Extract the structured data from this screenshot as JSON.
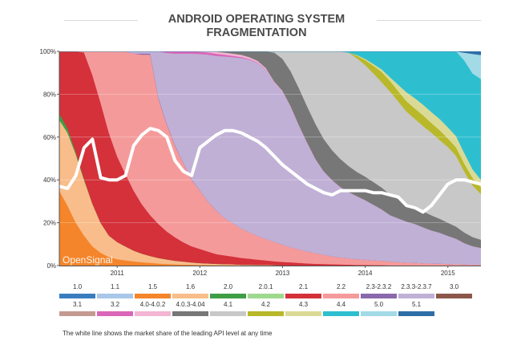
{
  "header": {
    "title_line1": "ANDROID OPERATING SYSTEM",
    "title_line2": "FRAGMENTATION"
  },
  "footnote": "The white line shows the market share of the leading API level at any time",
  "chart_data": {
    "type": "area",
    "stacked": true,
    "normalized": true,
    "title": "ANDROID OPERATING SYSTEM FRAGMENTATION",
    "xlabel": "",
    "ylabel": "",
    "x": [
      2010.3,
      2010.4,
      2010.5,
      2010.6,
      2010.7,
      2010.8,
      2010.9,
      2011.0,
      2011.1,
      2011.2,
      2011.3,
      2011.4,
      2011.5,
      2011.6,
      2011.7,
      2011.8,
      2011.9,
      2012.0,
      2012.1,
      2012.2,
      2012.3,
      2012.4,
      2012.5,
      2012.6,
      2012.7,
      2012.8,
      2012.9,
      2013.0,
      2013.1,
      2013.2,
      2013.3,
      2013.4,
      2013.5,
      2013.6,
      2013.7,
      2013.8,
      2013.9,
      2014.0,
      2014.1,
      2014.2,
      2014.3,
      2014.4,
      2014.5,
      2014.6,
      2014.7,
      2014.8,
      2014.9,
      2015.0,
      2015.1,
      2015.2,
      2015.3,
      2015.4
    ],
    "x_ticks": [
      "2011",
      "2012",
      "2013",
      "2014",
      "2015"
    ],
    "x_tick_values": [
      2011,
      2012,
      2013,
      2014,
      2015
    ],
    "y_ticks": [
      "0%",
      "20%",
      "40%",
      "60%",
      "80%",
      "100%"
    ],
    "ylim": [
      0,
      100
    ],
    "grid": "horizontal",
    "watermark": "OpenSignal",
    "series": [
      {
        "name": "1.0",
        "values": [
          0,
          0,
          0,
          0,
          0,
          0,
          0,
          0,
          0,
          0,
          0,
          0,
          0,
          0,
          0,
          0,
          0,
          0,
          0,
          0,
          0,
          0,
          0,
          0,
          0,
          0,
          0,
          0,
          0,
          0,
          0,
          0,
          0,
          0,
          0,
          0,
          0,
          0,
          0,
          0,
          0,
          0,
          0,
          0,
          0,
          0,
          0,
          0,
          0,
          0,
          0,
          0
        ]
      },
      {
        "name": "1.1",
        "values": [
          0,
          0,
          0,
          0,
          0,
          0,
          0,
          0,
          0,
          0,
          0,
          0,
          0,
          0,
          0,
          0,
          0,
          0,
          0,
          0,
          0,
          0,
          0,
          0,
          0,
          0,
          0,
          0,
          0,
          0,
          0,
          0,
          0,
          0,
          0,
          0,
          0,
          0,
          0,
          0,
          0,
          0,
          0,
          0,
          0,
          0,
          0,
          0,
          0,
          0,
          0,
          0
        ]
      },
      {
        "name": "1.5",
        "values": [
          35,
          28,
          20,
          14,
          9,
          6,
          4,
          3,
          2.5,
          2,
          1.6,
          1.3,
          1,
          0.8,
          0.6,
          0.5,
          0.4,
          0.3,
          0.3,
          0.2,
          0.2,
          0.2,
          0.1,
          0.1,
          0.1,
          0.1,
          0,
          0,
          0,
          0,
          0,
          0,
          0,
          0,
          0,
          0,
          0,
          0,
          0,
          0,
          0,
          0,
          0,
          0,
          0,
          0,
          0,
          0,
          0,
          0,
          0,
          0
        ]
      },
      {
        "name": "1.6",
        "values": [
          33,
          34,
          32,
          26,
          20,
          14,
          10,
          8,
          6.5,
          5,
          4,
          3.2,
          2.6,
          2.1,
          1.7,
          1.4,
          1.1,
          0.9,
          0.7,
          0.6,
          0.5,
          0.4,
          0.3,
          0.3,
          0.2,
          0.2,
          0.2,
          0.1,
          0.1,
          0.1,
          0,
          0,
          0,
          0,
          0,
          0,
          0,
          0,
          0,
          0,
          0,
          0,
          0,
          0,
          0,
          0,
          0,
          0,
          0,
          0,
          0,
          0
        ]
      },
      {
        "name": "2.0",
        "values": [
          3,
          2,
          1,
          0.5,
          0,
          0,
          0,
          0,
          0,
          0,
          0,
          0,
          0,
          0,
          0,
          0,
          0,
          0,
          0,
          0,
          0,
          0,
          0,
          0,
          0,
          0,
          0,
          0,
          0,
          0,
          0,
          0,
          0,
          0,
          0,
          0,
          0,
          0,
          0,
          0,
          0,
          0,
          0,
          0,
          0,
          0,
          0,
          0,
          0,
          0,
          0,
          0
        ]
      },
      {
        "name": "2.0.1",
        "values": [
          0,
          0,
          0,
          0,
          0,
          0,
          0,
          0,
          0,
          0,
          0,
          0,
          0,
          0,
          0,
          0,
          0,
          0,
          0,
          0,
          0,
          0,
          0,
          0,
          0,
          0,
          0,
          0,
          0,
          0,
          0,
          0,
          0,
          0,
          0,
          0,
          0,
          0,
          0,
          0,
          0,
          0,
          0,
          0,
          0,
          0,
          0,
          0,
          0,
          0,
          0,
          0
        ]
      },
      {
        "name": "2.1",
        "values": [
          29,
          36,
          47,
          59,
          60,
          56,
          48,
          40,
          34,
          28,
          23,
          19,
          16,
          13,
          11,
          9,
          7.5,
          6.5,
          5.5,
          4.5,
          4,
          3.5,
          3,
          2.6,
          2.2,
          1.9,
          1.6,
          1.4,
          1.2,
          1,
          0.9,
          0.8,
          0.7,
          0.6,
          0.5,
          0.4,
          0.3,
          0.3,
          0.2,
          0.2,
          0.1,
          0.1,
          0.1,
          0.1,
          0,
          0,
          0,
          0,
          0,
          0,
          0,
          0
        ]
      },
      {
        "name": "2.2",
        "values": [
          0,
          0,
          0,
          0.5,
          11,
          24,
          38,
          49,
          57.5,
          64,
          70,
          75,
          59,
          50,
          43,
          37,
          31,
          27,
          23,
          20,
          17,
          15,
          13,
          11.5,
          10,
          9,
          8,
          7,
          6,
          5.5,
          5,
          4.5,
          4,
          3.5,
          3,
          2.7,
          2.4,
          2.1,
          1.9,
          1.7,
          1.5,
          1.3,
          1.1,
          1,
          0.9,
          0.8,
          0.7,
          0.6,
          0.5,
          0.5,
          0.4,
          0.4
        ]
      },
      {
        "name": "2.3-2.3.2",
        "values": [
          0,
          0,
          0,
          0,
          0,
          0,
          0,
          0,
          0,
          0,
          0.5,
          0.5,
          0.5,
          0.4,
          0.3,
          0.2,
          0.2,
          0.1,
          0.1,
          0.1,
          0,
          0,
          0,
          0,
          0,
          0,
          0,
          0,
          0,
          0,
          0,
          0,
          0,
          0,
          0,
          0,
          0,
          0,
          0,
          0,
          0,
          0,
          0,
          0,
          0,
          0,
          0,
          0,
          0,
          0,
          0,
          0
        ]
      },
      {
        "name": "2.3.3-2.3.7",
        "values": [
          0,
          0,
          0,
          0,
          0,
          0,
          0,
          0,
          0,
          1,
          1,
          1,
          22,
          33,
          43,
          51,
          58.5,
          63,
          68,
          71.5,
          74,
          75,
          75.5,
          75,
          73,
          71,
          66,
          62,
          56,
          50,
          45,
          40,
          36,
          33,
          30,
          28,
          26,
          24,
          22,
          20,
          18,
          17,
          16,
          15,
          13.5,
          12,
          11,
          10,
          9,
          8,
          7.5,
          7
        ]
      },
      {
        "name": "3.0",
        "values": [
          0,
          0,
          0,
          0,
          0,
          0,
          0,
          0,
          0,
          0,
          0,
          0,
          0,
          0,
          0,
          0,
          0,
          0,
          0,
          0,
          0,
          0,
          0,
          0,
          0,
          0,
          0,
          0,
          0,
          0,
          0,
          0,
          0,
          0,
          0,
          0,
          0,
          0,
          0,
          0,
          0,
          0,
          0,
          0,
          0,
          0,
          0,
          0,
          0,
          0,
          0,
          0
        ]
      },
      {
        "name": "3.1",
        "values": [
          0,
          0,
          0,
          0,
          0,
          0,
          0,
          0,
          0,
          0,
          0,
          0,
          0,
          0,
          0,
          0,
          0,
          0,
          0,
          0,
          0,
          0,
          0,
          0,
          0,
          0,
          0,
          0,
          0,
          0,
          0,
          0,
          0,
          0,
          0,
          0,
          0,
          0,
          0,
          0,
          0,
          0,
          0,
          0,
          0,
          0,
          0,
          0,
          0,
          0,
          0,
          0
        ]
      },
      {
        "name": "3.2",
        "values": [
          0,
          0,
          0,
          0,
          0,
          0,
          0,
          0,
          0,
          0,
          0,
          0,
          0,
          0.7,
          1,
          1,
          1,
          1,
          1,
          1,
          0.8,
          0.6,
          0.4,
          0.3,
          0.2,
          0.1,
          0,
          0,
          0,
          0,
          0,
          0,
          0,
          0,
          0,
          0,
          0,
          0,
          0,
          0,
          0,
          0,
          0,
          0,
          0,
          0,
          0,
          0,
          0,
          0,
          0,
          0
        ]
      },
      {
        "name": "4.0-4.0.2",
        "values": [
          0,
          0,
          0,
          0,
          0,
          0,
          0,
          0,
          0,
          0,
          0,
          0,
          0,
          0,
          0,
          0,
          0,
          0.2,
          0.5,
          1,
          1,
          1,
          1,
          0.8,
          0.7,
          0.5,
          0.4,
          0.3,
          0.3,
          0.2,
          0.2,
          0.2,
          0.1,
          0.1,
          0.1,
          0,
          0,
          0,
          0,
          0,
          0,
          0,
          0,
          0,
          0,
          0,
          0,
          0,
          0,
          0,
          0,
          0
        ]
      },
      {
        "name": "4.0.3-4.04",
        "values": [
          0,
          0,
          0,
          0,
          0,
          0,
          0,
          0,
          0,
          0,
          0,
          0,
          0,
          0,
          0,
          0,
          0,
          0,
          0,
          0.1,
          0.5,
          1,
          1.5,
          2.5,
          4,
          7,
          12,
          13,
          14,
          15,
          15,
          15,
          14,
          13,
          12,
          11,
          10,
          9.5,
          9,
          8.5,
          8,
          7.5,
          7,
          6.5,
          6,
          5.5,
          5,
          4.7,
          4.3,
          4,
          3.7,
          3.4
        ]
      },
      {
        "name": "4.1",
        "values": [
          0,
          0,
          0,
          0,
          0,
          0,
          0,
          0,
          0,
          0,
          0,
          0,
          0,
          0,
          0,
          0,
          0,
          0,
          0,
          0,
          0,
          0,
          0,
          0,
          0,
          0,
          0.5,
          3,
          8,
          15,
          23,
          31,
          38,
          43,
          46,
          48,
          47,
          45,
          43,
          41,
          40,
          38,
          36,
          34,
          32,
          30,
          28,
          27,
          25,
          23,
          21,
          19
        ]
      },
      {
        "name": "4.2",
        "values": [
          0,
          0,
          0,
          0,
          0,
          0,
          0,
          0,
          0,
          0,
          0,
          0,
          0,
          0,
          0,
          0,
          0,
          0,
          0,
          0,
          0,
          0,
          0,
          0,
          0,
          0,
          0,
          0,
          0,
          0,
          0,
          0,
          0,
          0,
          0,
          0,
          1,
          2,
          3,
          4,
          4,
          4,
          4,
          4,
          4,
          3.5,
          3.5,
          3,
          3,
          3,
          3,
          3
        ]
      },
      {
        "name": "4.3",
        "values": [
          0,
          0,
          0,
          0,
          0,
          0,
          0,
          0,
          0,
          0,
          0,
          0,
          0,
          0,
          0,
          0,
          0,
          0,
          0,
          0,
          0,
          0,
          0,
          0,
          0,
          0,
          0,
          0,
          0,
          0,
          0,
          0,
          0,
          0,
          0,
          0,
          0.3,
          0.5,
          0.7,
          1,
          1.5,
          2.5,
          3.5,
          4,
          4,
          4,
          4,
          4,
          4,
          4,
          3.5,
          3
        ]
      },
      {
        "name": "4.4",
        "values": [
          0,
          0,
          0,
          0,
          0,
          0,
          0,
          0,
          0,
          0,
          0,
          0,
          0,
          0,
          0,
          0,
          0,
          0,
          0,
          0,
          0,
          0,
          0,
          0,
          0,
          0,
          0,
          0,
          0,
          0,
          0,
          0,
          0,
          0,
          0,
          0.5,
          1.5,
          3,
          5,
          7,
          10,
          13,
          16,
          18,
          20,
          22,
          24,
          27,
          30,
          35,
          39,
          42
        ]
      },
      {
        "name": "5.0",
        "values": [
          0,
          0,
          0,
          0,
          0,
          0,
          0,
          0,
          0,
          0,
          0,
          0,
          0,
          0,
          0,
          0,
          0,
          0,
          0,
          0,
          0,
          0,
          0,
          0,
          0,
          0,
          0,
          0,
          0,
          0,
          0,
          0,
          0,
          0,
          0,
          0,
          0,
          0,
          0,
          0,
          0,
          0,
          0,
          0,
          0,
          0,
          0,
          0,
          0,
          3,
          8,
          10
        ]
      },
      {
        "name": "5.1",
        "values": [
          0,
          0,
          0,
          0,
          0,
          0,
          0,
          0,
          0,
          0,
          0,
          0,
          0,
          0,
          0,
          0,
          0,
          0,
          0,
          0,
          0,
          0,
          0,
          0,
          0,
          0,
          0,
          0,
          0,
          0,
          0,
          0,
          0,
          0,
          0,
          0,
          0,
          0,
          0,
          0,
          0,
          0,
          0,
          0,
          0,
          0,
          0,
          0,
          0,
          0.5,
          1,
          1.5
        ]
      }
    ],
    "leading_api_line": {
      "name": "Leading API level share",
      "values": [
        37,
        36,
        42,
        55,
        59,
        41,
        40,
        40,
        42,
        56,
        61,
        64,
        63,
        60,
        49,
        44,
        42,
        55,
        58,
        61,
        63,
        63,
        62,
        60,
        58,
        55,
        51,
        47,
        44,
        41,
        38,
        36,
        34,
        33,
        35,
        35,
        35,
        35,
        34,
        34,
        33,
        32,
        28,
        27,
        25,
        28,
        33,
        38,
        40,
        40,
        39,
        38
      ]
    },
    "colors": {
      "1.0": "#3a7dbf",
      "1.1": "#a9c7e8",
      "1.5": "#f5852a",
      "1.6": "#f8bd8a",
      "2.0": "#3e9e45",
      "2.0.1": "#9fd98f",
      "2.1": "#d4313a",
      "2.2": "#f59a9a",
      "2.3-2.3.2": "#8a68ad",
      "2.3.3-2.3.7": "#c0b0d6",
      "3.0": "#8c564b",
      "3.1": "#c49a90",
      "3.2": "#d966b8",
      "4.0-4.0.2": "#f3b5d3",
      "4.0.3-4.04": "#777777",
      "4.1": "#c8c8c8",
      "4.2": "#b8b82a",
      "4.3": "#dada96",
      "4.4": "#2dbfd0",
      "5.0": "#a2dae6",
      "5.1": "#2e6ea6"
    },
    "legend_placement": "bottom"
  }
}
